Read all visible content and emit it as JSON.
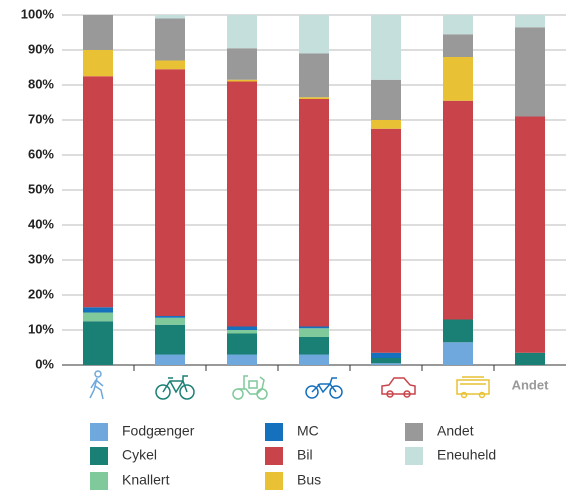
{
  "chart_data": {
    "type": "stacked_bar",
    "categories": [
      null,
      null,
      null,
      null,
      null,
      null,
      "Andet"
    ],
    "series": [
      {
        "name": "Fodgænger",
        "color": "#6fa8dc",
        "values": [
          0,
          3,
          3,
          3,
          0.5,
          6.5,
          0
        ]
      },
      {
        "name": "Cykel",
        "color": "#1a7f74",
        "values": [
          12.5,
          8.5,
          6,
          5,
          1.5,
          6.5,
          3.5
        ]
      },
      {
        "name": "Knallert",
        "color": "#7fc99a",
        "values": [
          2.5,
          2,
          1,
          2.5,
          0,
          0,
          0
        ]
      },
      {
        "name": "MC",
        "color": "#1570be",
        "values": [
          1.5,
          0.5,
          1,
          0.5,
          1.5,
          0,
          0
        ]
      },
      {
        "name": "Bil",
        "color": "#c9444a",
        "values": [
          66,
          70.5,
          70,
          65,
          64,
          62.5,
          67.5
        ]
      },
      {
        "name": "Bus",
        "color": "#e8c234",
        "values": [
          7.5,
          2.5,
          0.5,
          0.5,
          2.5,
          12.5,
          0
        ]
      },
      {
        "name": "Andet",
        "color": "#999999",
        "values": [
          10,
          12,
          9,
          12.5,
          11.5,
          6.5,
          25.5
        ]
      },
      {
        "name": "Eneuheld",
        "color": "#c5dfdd",
        "values": [
          0,
          1,
          9.5,
          11,
          18.5,
          5.5,
          3.5
        ]
      }
    ],
    "ylim": [
      0,
      100
    ],
    "yticks": [
      {
        "value": 0,
        "label": "0%"
      },
      {
        "value": 10,
        "label": "10%"
      },
      {
        "value": 20,
        "label": "20%"
      },
      {
        "value": 30,
        "label": "30%"
      },
      {
        "value": 40,
        "label": "40%"
      },
      {
        "value": 50,
        "label": "50%"
      },
      {
        "value": 60,
        "label": "60%"
      },
      {
        "value": 70,
        "label": "70%"
      },
      {
        "value": 80,
        "label": "80%"
      },
      {
        "value": 90,
        "label": "90%"
      },
      {
        "value": 100,
        "label": "100%"
      }
    ],
    "grid": true
  }
}
